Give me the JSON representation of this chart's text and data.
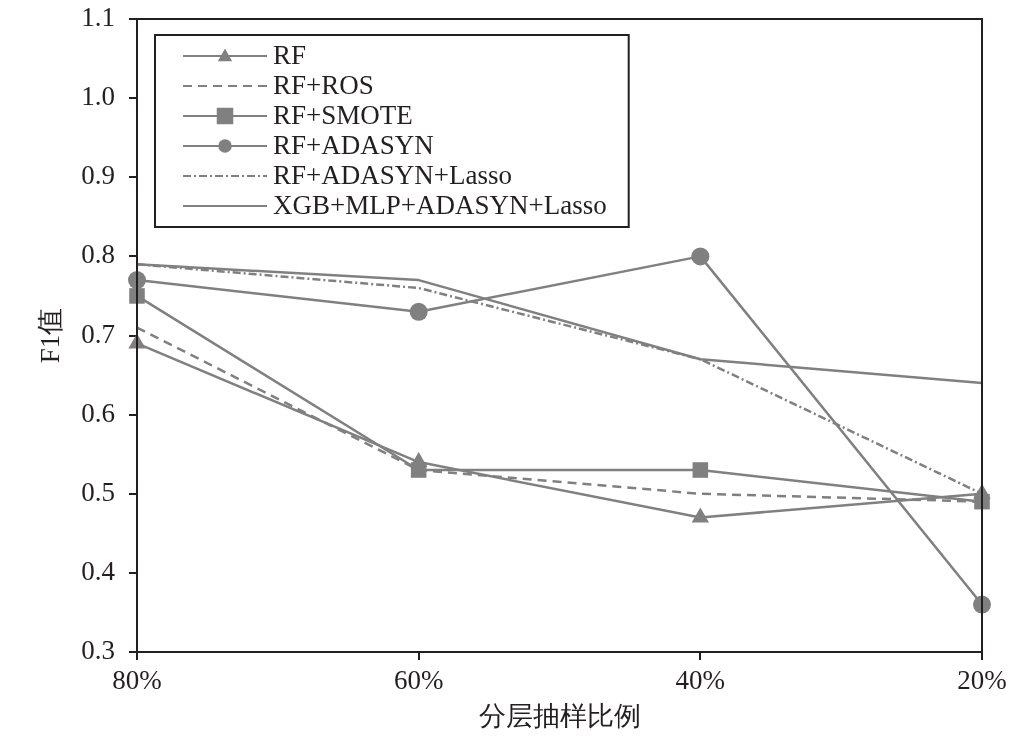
{
  "chart_data": {
    "type": "line",
    "xlabel": "分层抽样比例",
    "ylabel": "F1值",
    "categories": [
      "80%",
      "60%",
      "40%",
      "20%"
    ],
    "series": [
      {
        "name": "RF",
        "color": "#808080",
        "marker": "triangle",
        "line_style": "solid",
        "values": [
          0.69,
          0.54,
          0.47,
          0.5
        ]
      },
      {
        "name": "RF+ROS",
        "color": "#808080",
        "line_style": "dashed",
        "values": [
          0.71,
          0.53,
          0.5,
          0.49
        ]
      },
      {
        "name": "RF+SMOTE",
        "color": "#808080",
        "marker": "square",
        "line_style": "solid",
        "values": [
          0.75,
          0.53,
          0.53,
          0.49
        ]
      },
      {
        "name": "RF+ADASYN",
        "color": "#808080",
        "marker": "circle",
        "line_style": "solid",
        "values": [
          0.77,
          0.73,
          0.8,
          0.36
        ]
      },
      {
        "name": "RF+ADASYN+Lasso",
        "color": "#808080",
        "line_style": "dashdot",
        "values": [
          0.79,
          0.76,
          0.67,
          0.5
        ]
      },
      {
        "name": "XGB+MLP+ADASYN+Lasso",
        "color": "#808080",
        "line_style": "solid",
        "values": [
          0.79,
          0.77,
          0.67,
          0.64
        ]
      }
    ],
    "ylim": [
      0.3,
      1.1
    ],
    "yticks": [
      0.3,
      0.4,
      0.5,
      0.6,
      0.7,
      0.8,
      0.9,
      {
        "value": 1,
        "label": "1.0"
      },
      1.1
    ],
    "grid": false,
    "legend": "top left"
  }
}
